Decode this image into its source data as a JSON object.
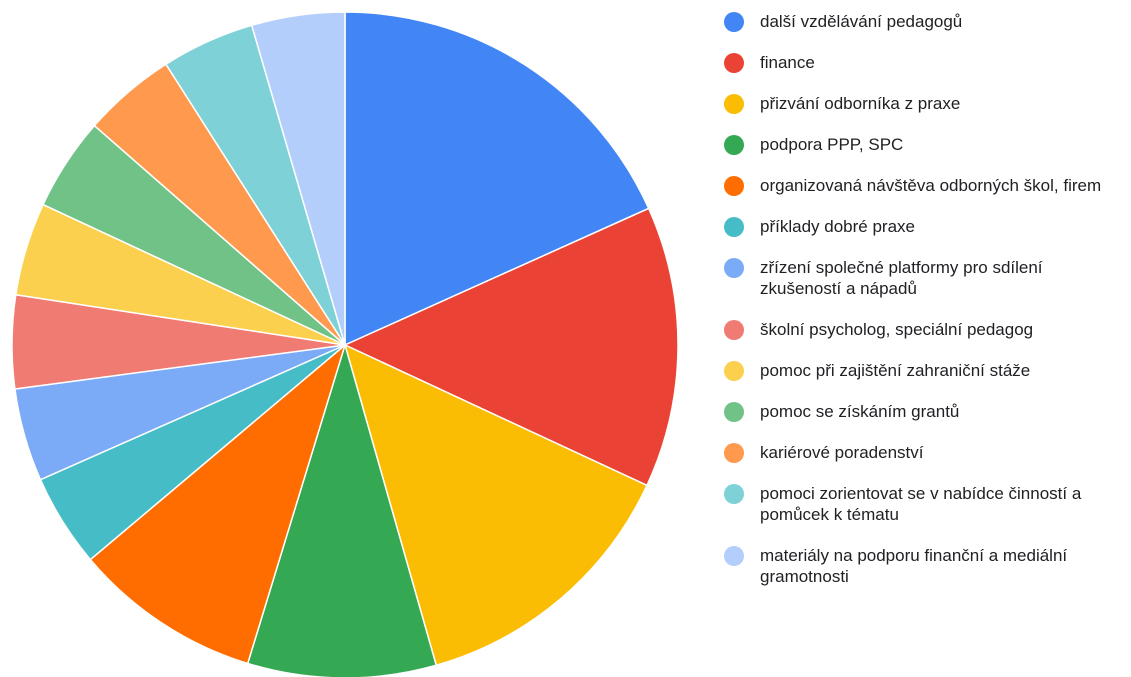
{
  "chart_data": {
    "type": "pie",
    "categories": [
      "další vzdělávání pedagogů",
      "finance",
      "přizvání odborníka z praxe",
      "podpora PPP, SPC",
      "organizovaná návštěva odborných škol, firem",
      "příklady dobré praxe",
      "zřízení společné platformy pro sdílení zkušeností a nápadů",
      "školní psycholog, speciální pedagog",
      "pomoc při zajištění zahraniční stáže",
      "pomoc se získáním grantů",
      "kariérové poradenství",
      "pomoci zorientovat se v nabídce činností a pomůcek k tématu",
      "materiály na podporu finanční a mediální gramotnosti"
    ],
    "values": [
      18.2,
      13.6,
      13.6,
      9.1,
      9.1,
      4.5,
      4.5,
      4.5,
      4.5,
      4.5,
      4.5,
      4.5,
      4.5
    ],
    "colors": [
      "#4285f4",
      "#ea4335",
      "#fbbc04",
      "#34a853",
      "#ff6d01",
      "#46bdc6",
      "#7baaf7",
      "#f07b72",
      "#fcd04f",
      "#71c287",
      "#ff994d",
      "#7ed1d7",
      "#b3cefb"
    ],
    "legend": "right"
  }
}
